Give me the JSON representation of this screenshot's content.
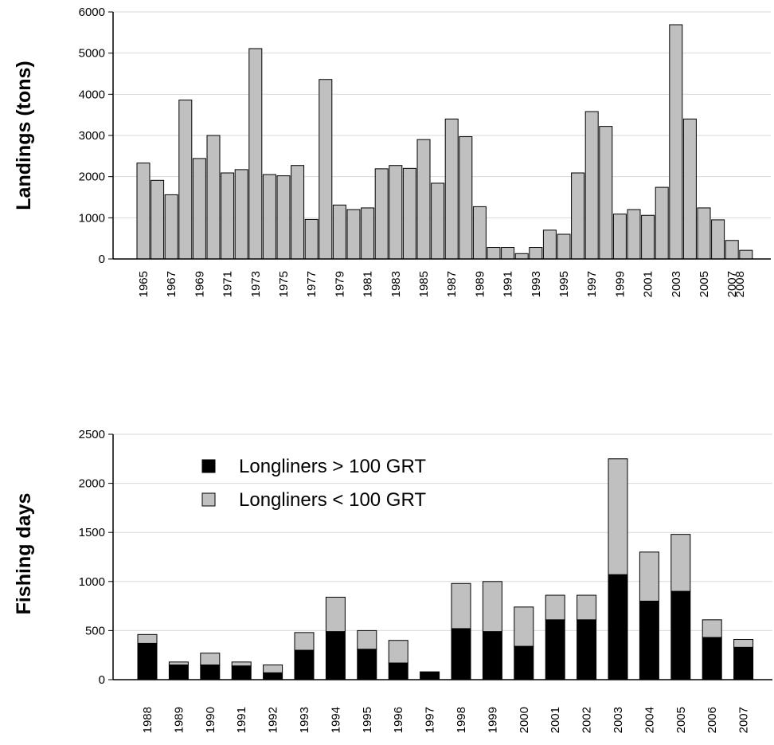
{
  "chart_data": [
    {
      "type": "bar",
      "ylabel": "Landings (tons)",
      "ylim": [
        0,
        6000
      ],
      "yticks": [
        0,
        1000,
        2000,
        3000,
        4000,
        5000,
        6000
      ],
      "grid": true,
      "color": "#c0c0c0",
      "categories": [
        "1965",
        "1966",
        "1967",
        "1968",
        "1969",
        "1970",
        "1971",
        "1972",
        "1973",
        "1974",
        "1975",
        "1976",
        "1977",
        "1978",
        "1979",
        "1980",
        "1981",
        "1982",
        "1983",
        "1984",
        "1985",
        "1986",
        "1987",
        "1988",
        "1989",
        "1990",
        "1991",
        "1992",
        "1993",
        "1994",
        "1995",
        "1996",
        "1997",
        "1998",
        "1999",
        "2000",
        "2001",
        "2002",
        "2003",
        "2004",
        "2005",
        "2006",
        "2007",
        "2008"
      ],
      "xtick_labels": [
        "1965",
        "1967",
        "1969",
        "1971",
        "1973",
        "1975",
        "1977",
        "1979",
        "1981",
        "1983",
        "1985",
        "1987",
        "1989",
        "1991",
        "1993",
        "1995",
        "1997",
        "1999",
        "2001",
        "2003",
        "2005",
        "2007",
        "2008"
      ],
      "values": [
        2330,
        1910,
        1560,
        3860,
        2440,
        3000,
        2090,
        2170,
        5110,
        2050,
        2020,
        2270,
        960,
        4360,
        1310,
        1200,
        1240,
        2190,
        2270,
        2200,
        2900,
        1840,
        3400,
        2970,
        1270,
        280,
        280,
        130,
        280,
        700,
        600,
        2090,
        3580,
        3220,
        1090,
        1200,
        1060,
        1740,
        5690,
        3400,
        1240,
        950,
        450,
        210
      ]
    },
    {
      "type": "bar",
      "stacked": true,
      "ylabel": "Fishing days",
      "ylim": [
        0,
        2500
      ],
      "yticks": [
        0,
        500,
        1000,
        1500,
        2000,
        2500
      ],
      "grid": true,
      "legend_position": "top-left",
      "categories": [
        "1988",
        "1989",
        "1990",
        "1991",
        "1992",
        "1993",
        "1994",
        "1995",
        "1996",
        "1997",
        "1998",
        "1999",
        "2000",
        "2001",
        "2002",
        "2003",
        "2004",
        "2005",
        "2006",
        "2007"
      ],
      "series": [
        {
          "name": "Longliners > 100 GRT",
          "color": "#000000",
          "values": [
            370,
            150,
            150,
            140,
            70,
            300,
            490,
            310,
            170,
            80,
            520,
            490,
            340,
            610,
            610,
            1070,
            800,
            900,
            430,
            330
          ]
        },
        {
          "name": "Longliners < 100 GRT",
          "color": "#c0c0c0",
          "values": [
            90,
            30,
            120,
            40,
            80,
            180,
            350,
            190,
            230,
            0,
            460,
            510,
            400,
            250,
            250,
            1180,
            500,
            580,
            180,
            80
          ]
        }
      ]
    }
  ]
}
